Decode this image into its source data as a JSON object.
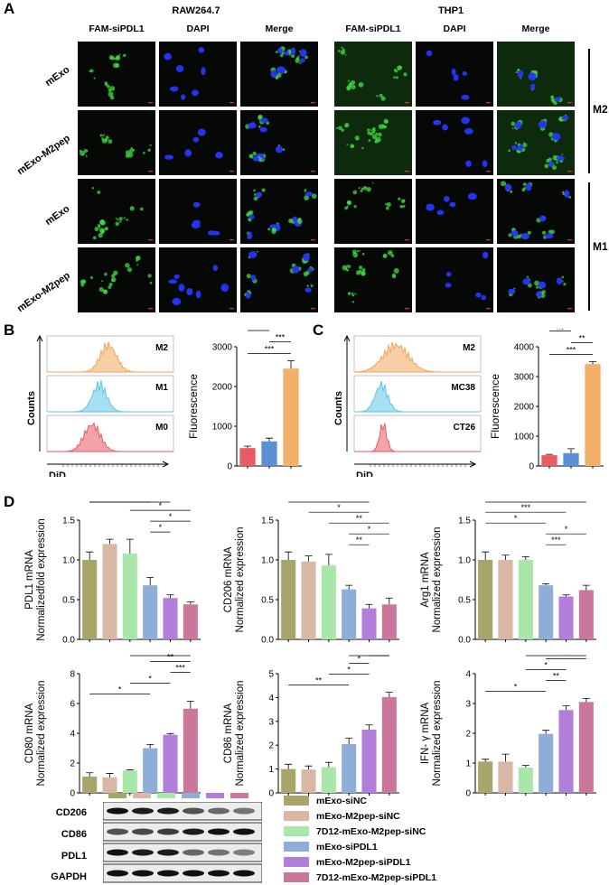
{
  "panel_a": {
    "letter": "A",
    "groups": [
      {
        "title": "RAW264.7",
        "columns": [
          "FAM-siPDL1",
          "DAPI",
          "Merge"
        ]
      },
      {
        "title": "THP1",
        "columns": [
          "FAM-siPDL1",
          "DAPI",
          "Merge"
        ]
      }
    ],
    "row_labels": [
      "mExo",
      "mExo-M2pep",
      "mExo",
      "mExo-M2pep"
    ],
    "side_labels": [
      "M2",
      "M1"
    ]
  },
  "panel_b": {
    "letter": "B",
    "histogram": {
      "labels": [
        "M2",
        "M1",
        "M0"
      ],
      "ylabel": "Counts",
      "xlabel": "DiD",
      "colors": [
        "#f2a65a",
        "#5ec6e8",
        "#e85a64"
      ]
    }
  },
  "panel_c": {
    "letter": "C",
    "histogram": {
      "labels": [
        "M2",
        "MC38",
        "CT26"
      ],
      "ylabel": "Counts",
      "xlabel": "DiD",
      "colors": [
        "#f2a65a",
        "#5ec6e8",
        "#e85a64"
      ]
    }
  },
  "panel_d": {
    "letter": "D",
    "western_blot": {
      "labels": [
        "CD206",
        "CD86",
        "PDL1",
        "GAPDH"
      ],
      "lane_colors": [
        "#a8a56a",
        "#d8b8a4",
        "#a9e6a9",
        "#8eaed8",
        "#b27fd8",
        "#c9789c"
      ]
    },
    "legend": [
      {
        "label": "mExo-siNC",
        "color": "#a8a56a"
      },
      {
        "label": "mExo-M2pep-siNC",
        "color": "#d8b8a4"
      },
      {
        "label": "7D12-mExo-M2pep-siNC",
        "color": "#a9e6a9"
      },
      {
        "label": "mExo-siPDL1",
        "color": "#8eaed8"
      },
      {
        "label": "mExo-M2pep-siPDL1",
        "color": "#b27fd8"
      },
      {
        "label": "7D12-mExo-M2pep-siPDL1",
        "color": "#c9789c"
      }
    ]
  },
  "chart_data": [
    {
      "id": "B",
      "type": "bar",
      "ylabel": "Fluorescence",
      "ylim": [
        0,
        3000
      ],
      "yticks": [
        0,
        1000,
        2000,
        3000
      ],
      "values": [
        450,
        620,
        2450
      ],
      "errors": [
        50,
        80,
        200
      ],
      "colors": [
        "#e85a64",
        "#5b90d6",
        "#f2b06a"
      ],
      "sig": [
        {
          "a": 0,
          "b": 1,
          "label": "ns"
        },
        {
          "a": 1,
          "b": 2,
          "label": "***"
        },
        {
          "a": 0,
          "b": 2,
          "label": "***"
        }
      ]
    },
    {
      "id": "C",
      "type": "bar",
      "ylabel": "Fluorescence",
      "ylim": [
        0,
        4000
      ],
      "yticks": [
        0,
        1000,
        2000,
        3000,
        4000
      ],
      "values": [
        360,
        430,
        3420
      ],
      "errors": [
        30,
        150,
        80
      ],
      "colors": [
        "#e85a64",
        "#5b90d6",
        "#f2b06a"
      ],
      "sig": [
        {
          "a": 0,
          "b": 1,
          "label": "ns"
        },
        {
          "a": 1,
          "b": 2,
          "label": "**"
        },
        {
          "a": 0,
          "b": 2,
          "label": "***"
        }
      ]
    },
    {
      "id": "PDL1",
      "type": "bar",
      "ylabel": [
        "PDL1 mRNA",
        "Normalizedfold expression"
      ],
      "ylim": [
        0,
        1.5
      ],
      "yticks": [
        0.0,
        0.5,
        1.0,
        1.5
      ],
      "tickfmt": 1,
      "values": [
        1.0,
        1.2,
        1.08,
        0.68,
        0.52,
        0.44
      ],
      "errors": [
        0.1,
        0.06,
        0.18,
        0.1,
        0.04,
        0.03
      ],
      "sig": [
        {
          "a": 0,
          "b": 4,
          "label": "**"
        },
        {
          "a": 0,
          "b": 3,
          "label": "*"
        },
        {
          "a": 2,
          "b": 5,
          "label": "*"
        },
        {
          "a": 3,
          "b": 5,
          "label": "*"
        },
        {
          "a": 3,
          "b": 4,
          "label": "*"
        }
      ]
    },
    {
      "id": "CD206",
      "type": "bar",
      "ylabel": [
        "CD206 mRNA",
        "Normalized expression"
      ],
      "ylim": [
        0,
        1.5
      ],
      "yticks": [
        0.0,
        0.5,
        1.0,
        1.5
      ],
      "tickfmt": 1,
      "values": [
        1.0,
        0.98,
        0.93,
        0.63,
        0.39,
        0.44
      ],
      "errors": [
        0.1,
        0.07,
        0.14,
        0.05,
        0.05,
        0.08
      ],
      "sig": [
        {
          "a": 0,
          "b": 4,
          "label": "*"
        },
        {
          "a": 1,
          "b": 4,
          "label": "*"
        },
        {
          "a": 2,
          "b": 5,
          "label": "**"
        },
        {
          "a": 3,
          "b": 5,
          "label": "*"
        },
        {
          "a": 3,
          "b": 4,
          "label": "**"
        }
      ]
    },
    {
      "id": "Arg1",
      "type": "bar",
      "ylabel": [
        "Arg1 mRNA",
        "Normalized expression"
      ],
      "ylim": [
        0,
        1.5
      ],
      "yticks": [
        0.0,
        0.5,
        1.0,
        1.5
      ],
      "tickfmt": 1,
      "values": [
        1.0,
        1.0,
        1.0,
        0.68,
        0.54,
        0.62
      ],
      "errors": [
        0.1,
        0.06,
        0.04,
        0.02,
        0.02,
        0.06
      ],
      "sig": [
        {
          "a": 0,
          "b": 5,
          "label": "***"
        },
        {
          "a": 0,
          "b": 4,
          "label": "***"
        },
        {
          "a": 0,
          "b": 3,
          "label": "*"
        },
        {
          "a": 3,
          "b": 5,
          "label": "*"
        },
        {
          "a": 3,
          "b": 4,
          "label": "***"
        }
      ]
    },
    {
      "id": "CD80",
      "type": "bar",
      "ylabel": [
        "CD80 mRNA",
        "Normalized expression"
      ],
      "ylim": [
        0,
        8
      ],
      "yticks": [
        0,
        2,
        4,
        6,
        8
      ],
      "tickfmt": 0,
      "values": [
        1.1,
        1.05,
        1.5,
        3.0,
        3.9,
        5.65
      ],
      "errors": [
        0.25,
        0.25,
        0.05,
        0.25,
        0.08,
        0.5
      ],
      "sig": [
        {
          "a": 2,
          "b": 5,
          "label": "***"
        },
        {
          "a": 3,
          "b": 5,
          "label": "**"
        },
        {
          "a": 4,
          "b": 5,
          "label": "***"
        },
        {
          "a": 2,
          "b": 4,
          "label": "*"
        },
        {
          "a": 0,
          "b": 3,
          "label": "*"
        }
      ]
    },
    {
      "id": "CD86",
      "type": "bar",
      "ylabel": [
        "CD86 mRNA",
        "Normalized expression"
      ],
      "ylim": [
        0,
        5
      ],
      "yticks": [
        0,
        1,
        2,
        3,
        4,
        5
      ],
      "tickfmt": 0,
      "values": [
        1.0,
        0.98,
        1.08,
        2.05,
        2.65,
        4.02
      ],
      "errors": [
        0.2,
        0.15,
        0.2,
        0.25,
        0.2,
        0.2
      ],
      "sig": [
        {
          "a": 3,
          "b": 5,
          "label": "**"
        },
        {
          "a": 4,
          "b": 5,
          "label": "***"
        },
        {
          "a": 3,
          "b": 4,
          "label": "*"
        },
        {
          "a": 2,
          "b": 4,
          "label": "*"
        },
        {
          "a": 0,
          "b": 3,
          "label": "**"
        }
      ]
    },
    {
      "id": "IFN",
      "type": "bar",
      "ylabel": [
        "IFN- γ mRNA",
        "Normalized expression"
      ],
      "ylim": [
        0,
        4
      ],
      "yticks": [
        0,
        1,
        2,
        3,
        4
      ],
      "tickfmt": 0,
      "values": [
        1.05,
        1.05,
        0.85,
        1.98,
        2.78,
        3.05
      ],
      "errors": [
        0.08,
        0.25,
        0.07,
        0.12,
        0.14,
        0.12
      ],
      "sig": [
        {
          "a": 2,
          "b": 5,
          "label": "***"
        },
        {
          "a": 3,
          "b": 5,
          "label": "***"
        },
        {
          "a": 2,
          "b": 4,
          "label": "*"
        },
        {
          "a": 3,
          "b": 4,
          "label": "**"
        },
        {
          "a": 0,
          "b": 3,
          "label": "*"
        }
      ]
    }
  ]
}
